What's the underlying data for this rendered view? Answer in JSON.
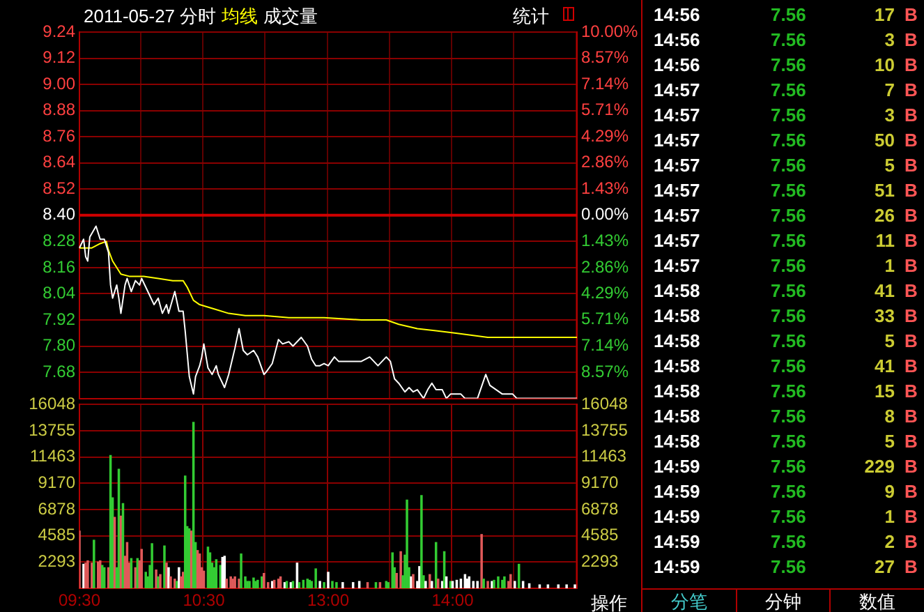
{
  "chart_data": [
    {
      "type": "line",
      "title": "2011-05-27 分时",
      "grid": true,
      "annotations": [
        "统计"
      ],
      "categories": [
        null,
        null,
        null,
        null,
        null,
        null,
        null,
        null,
        null,
        null,
        null,
        null,
        null,
        null,
        null,
        null,
        null,
        null,
        null,
        null,
        null,
        null,
        null,
        null,
        null,
        null,
        null,
        null,
        null,
        null,
        null,
        null,
        null,
        null,
        null,
        null,
        null,
        null,
        null,
        null,
        null,
        null,
        null,
        null,
        null,
        null,
        null,
        null,
        null,
        null,
        null,
        null,
        null,
        null,
        null,
        null,
        null,
        null,
        null,
        null,
        null,
        null,
        null,
        null,
        null,
        null,
        null,
        null,
        null,
        null,
        null,
        null,
        null,
        null,
        null,
        null,
        null,
        null,
        null,
        null,
        null,
        null,
        null,
        null,
        null,
        null,
        null,
        null,
        null,
        null,
        null,
        null,
        null,
        null,
        null,
        null,
        null,
        null,
        null,
        null,
        null,
        null,
        null,
        null,
        null,
        null,
        null,
        null,
        null,
        null,
        null,
        null,
        null,
        null,
        null,
        null,
        null,
        null,
        null,
        null,
        null,
        null,
        null,
        null,
        null,
        null,
        null,
        null,
        null,
        null,
        null,
        null,
        null,
        null,
        null,
        null,
        null,
        null,
        null,
        null,
        null,
        null,
        null,
        null,
        null,
        null,
        null,
        null,
        null,
        null,
        null,
        null,
        null,
        null,
        null,
        null,
        null,
        null,
        null,
        null,
        null,
        null,
        null,
        null,
        null,
        null,
        null,
        null,
        null,
        null,
        null,
        null,
        null,
        null,
        null,
        null,
        null,
        null,
        null,
        null,
        null,
        null,
        null,
        null,
        null,
        null,
        null,
        null,
        null,
        null,
        null,
        null,
        null,
        null,
        null,
        null,
        null,
        null,
        null,
        null,
        null,
        null,
        null,
        null,
        null,
        null,
        null,
        null,
        null,
        null,
        null,
        null,
        null,
        null,
        null,
        null,
        null,
        null,
        null,
        null,
        null,
        null,
        null,
        null,
        null,
        null,
        null,
        null,
        null,
        null,
        null,
        null,
        null,
        null,
        null,
        null,
        null,
        null,
        null,
        null,
        null
      ],
      "series": [
        {
          "color": "#ffffff",
          "values": [
            8.25,
            null,
            8.29,
            8.21,
            8.19,
            8.3,
            null,
            null,
            8.35,
            null,
            8.29,
            null,
            8.29,
            null,
            8.23,
            8.08,
            8.02,
            null,
            8.08,
            8.02,
            7.95,
            null,
            8.08,
            8.11,
            null,
            8.05,
            null,
            8.1,
            null,
            8.08,
            8.11,
            null,
            null,
            8.05,
            null,
            null,
            7.99,
            null,
            8.02,
            null,
            7.95,
            null,
            7.99,
            7.95,
            null,
            null,
            8.05,
            null,
            7.96,
            null,
            7.96,
            7.87,
            null,
            7.66,
            null,
            7.58,
            7.66,
            null,
            7.71,
            7.75,
            7.81,
            null,
            7.7,
            null,
            7.67,
            null,
            7.71,
            7.67,
            null,
            null,
            7.61,
            null,
            7.67,
            null,
            null,
            7.79,
            null,
            7.88,
            null,
            7.78,
            null,
            7.76,
            null,
            null,
            7.78,
            null,
            7.75,
            null,
            null,
            7.67,
            7.68,
            null,
            null,
            7.72,
            null,
            null,
            7.83,
            null,
            7.81,
            null,
            null,
            7.82,
            null,
            7.8,
            null,
            7.82,
            null,
            7.84,
            null,
            null,
            7.8,
            null,
            7.74,
            null,
            7.71,
            null,
            7.71,
            null,
            7.72,
            null,
            7.71,
            null,
            null,
            7.75,
            null,
            7.73,
            null,
            null,
            7.73,
            null,
            null,
            null,
            7.73,
            null,
            null,
            null,
            7.73,
            null,
            null,
            null,
            7.75,
            null,
            7.73,
            null,
            7.71,
            null,
            null,
            null,
            7.75,
            null,
            7.73,
            null,
            7.65,
            null,
            7.63,
            null,
            null,
            7.59,
            null,
            7.61,
            null,
            7.59,
            null,
            7.6,
            null,
            null,
            7.56,
            null,
            7.6,
            null,
            7.63,
            null,
            7.6,
            null,
            null,
            7.6,
            null,
            7.56,
            null,
            7.58,
            null,
            7.58,
            null,
            null,
            7.58,
            null,
            7.56,
            null,
            null,
            null,
            7.56,
            null,
            7.56,
            null,
            null,
            null,
            7.67,
            null,
            7.62,
            null,
            null,
            7.6,
            null,
            null,
            7.58,
            null,
            7.58,
            null,
            null,
            7.58,
            null,
            7.56,
            null,
            null,
            null,
            null,
            null,
            null,
            null,
            null,
            null,
            null,
            null,
            null,
            null,
            null,
            null,
            null,
            null,
            null,
            null,
            null,
            null,
            null,
            null,
            null,
            null,
            null,
            null,
            null,
            7.56
          ]
        },
        {
          "name": "均线",
          "color": "#ffff00",
          "values": [
            8.25,
            null,
            null,
            null,
            null,
            null,
            8.25,
            null,
            null,
            null,
            8.27,
            null,
            null,
            8.28,
            8.24,
            null,
            8.19,
            null,
            null,
            null,
            8.13,
            null,
            null,
            null,
            8.12,
            null,
            null,
            null,
            null,
            null,
            null,
            8.12,
            null,
            null,
            null,
            null,
            null,
            null,
            8.11,
            null,
            null,
            null,
            null,
            null,
            null,
            8.1,
            null,
            null,
            null,
            null,
            8.1,
            null,
            8.07,
            null,
            null,
            8.01,
            null,
            null,
            7.99,
            null,
            null,
            null,
            null,
            null,
            null,
            7.97,
            null,
            null,
            null,
            null,
            null,
            null,
            7.95,
            null,
            null,
            null,
            null,
            null,
            null,
            null,
            7.94,
            null,
            null,
            null,
            null,
            null,
            null,
            null,
            null,
            7.94,
            null,
            null,
            null,
            null,
            null,
            null,
            null,
            null,
            null,
            null,
            null,
            7.93,
            null,
            null,
            null,
            null,
            null,
            null,
            null,
            null,
            null,
            null,
            null,
            null,
            null,
            null,
            null,
            null,
            7.93,
            null,
            null,
            null,
            null,
            null,
            null,
            null,
            null,
            null,
            null,
            null,
            null,
            null,
            null,
            null,
            null,
            null,
            7.92,
            null,
            null,
            null,
            null,
            null,
            null,
            null,
            null,
            null,
            null,
            null,
            7.92,
            null,
            null,
            null,
            null,
            null,
            7.9,
            null,
            null,
            null,
            null,
            null,
            null,
            null,
            null,
            7.88,
            null,
            null,
            null,
            null,
            null,
            null,
            null,
            null,
            7.87,
            null,
            null,
            null,
            null,
            null,
            null,
            null,
            null,
            7.86,
            null,
            null,
            null,
            null,
            null,
            null,
            null,
            null,
            null,
            null,
            null,
            null,
            null,
            null,
            null,
            7.84,
            null,
            null,
            null,
            null,
            null,
            null,
            null,
            null,
            null,
            null,
            null,
            null,
            7.84,
            null,
            null,
            null,
            null,
            null,
            null,
            null,
            null,
            null,
            null,
            null,
            null,
            null,
            null,
            null,
            null,
            null,
            null,
            null,
            null,
            null,
            null,
            null,
            null,
            null,
            null,
            null,
            null,
            null,
            7.84
          ]
        }
      ],
      "ylim": [
        7.56,
        9.24
      ],
      "yticks": [
        {
          "value": 9.24,
          "label": "9.24"
        },
        {
          "value": 9.12,
          "label": "9.12"
        },
        {
          "value": 9.0,
          "label": "9.00"
        },
        {
          "value": 8.88,
          "label": "8.88"
        },
        {
          "value": 8.76,
          "label": "8.76"
        },
        {
          "value": 8.64,
          "label": "8.64"
        },
        {
          "value": 8.52,
          "label": "8.52"
        },
        {
          "value": 8.4,
          "label": "8.40"
        },
        {
          "value": 8.28,
          "label": "8.28"
        },
        {
          "value": 8.16,
          "label": "8.16"
        },
        {
          "value": 8.04,
          "label": "8.04"
        },
        {
          "value": 7.92,
          "label": "7.92"
        },
        {
          "value": 7.8,
          "label": "7.80"
        },
        {
          "value": 7.68,
          "label": "7.68"
        },
        {
          "value": 7.56,
          "label": null
        }
      ],
      "y2lim": [
        -10,
        10
      ],
      "y2ticks": [
        {
          "value": 10,
          "label": "10.00%"
        },
        {
          "value": 8.57,
          "label": "8.57%"
        },
        {
          "value": 7.14,
          "label": "7.14%"
        },
        {
          "value": 5.71,
          "label": "5.71%"
        },
        {
          "value": 4.29,
          "label": "4.29%"
        },
        {
          "value": 2.86,
          "label": "2.86%"
        },
        {
          "value": 1.43,
          "label": "1.43%"
        },
        {
          "value": 0,
          "label": "0.00%"
        },
        {
          "value": -1.43,
          "label": "1.43%"
        },
        {
          "value": -2.86,
          "label": "2.86%"
        },
        {
          "value": -4.29,
          "label": "4.29%"
        },
        {
          "value": -5.71,
          "label": "5.71%"
        },
        {
          "value": -7.14,
          "label": "7.14%"
        },
        {
          "value": -8.57,
          "label": "8.57%"
        },
        {
          "value": -10,
          "label": null
        }
      ],
      "ref_lines": [
        {
          "axis": "y",
          "value": 8.4,
          "color": "#d00000"
        }
      ]
    },
    {
      "type": "bar",
      "title": "成交量",
      "grid": true,
      "annotations": [
        "操作"
      ],
      "categories": [
        "09:30",
        null,
        null,
        null,
        null,
        null,
        null,
        null,
        null,
        null,
        null,
        null,
        null,
        null,
        null,
        null,
        null,
        null,
        null,
        null,
        null,
        null,
        null,
        null,
        null,
        null,
        null,
        null,
        null,
        null,
        null,
        null,
        null,
        null,
        null,
        null,
        null,
        null,
        null,
        null,
        null,
        null,
        null,
        null,
        null,
        null,
        null,
        null,
        null,
        null,
        null,
        null,
        null,
        null,
        null,
        null,
        null,
        null,
        null,
        null,
        "10:30",
        null,
        null,
        null,
        null,
        null,
        null,
        null,
        null,
        null,
        null,
        null,
        null,
        null,
        null,
        null,
        null,
        null,
        null,
        null,
        null,
        null,
        null,
        null,
        null,
        null,
        null,
        null,
        null,
        null,
        null,
        null,
        null,
        null,
        null,
        null,
        null,
        null,
        null,
        null,
        null,
        null,
        null,
        null,
        null,
        null,
        null,
        null,
        null,
        null,
        null,
        null,
        null,
        null,
        null,
        null,
        null,
        null,
        null,
        null,
        "13:00",
        null,
        null,
        null,
        null,
        null,
        null,
        null,
        null,
        null,
        null,
        null,
        null,
        null,
        null,
        null,
        null,
        null,
        null,
        null,
        null,
        null,
        null,
        null,
        null,
        null,
        null,
        null,
        null,
        null,
        null,
        null,
        null,
        null,
        null,
        null,
        null,
        null,
        null,
        null,
        null,
        null,
        null,
        null,
        null,
        null,
        null,
        null,
        null,
        null,
        null,
        null,
        null,
        null,
        null,
        null,
        null,
        null,
        null,
        null,
        "14:00",
        null,
        null,
        null,
        null,
        null,
        null,
        null,
        null,
        null,
        null,
        null,
        null,
        null,
        null,
        null,
        null,
        null,
        null,
        null,
        null,
        null,
        null,
        null,
        null,
        null,
        null,
        null,
        null,
        null,
        null,
        null,
        null,
        null,
        null,
        null,
        null,
        null,
        null,
        null,
        null,
        null,
        null,
        null,
        null,
        null,
        null,
        null,
        null,
        null,
        null,
        null,
        null,
        null,
        null,
        null,
        null,
        null,
        null,
        null,
        null
      ],
      "values": [
        5000,
        null,
        2100,
        2200,
        2400,
        null,
        2200,
        4200,
        null,
        2300,
        2400,
        2000,
        1800,
        null,
        1800,
        11600,
        7900,
        6200,
        1800,
        10400,
        6300,
        7400,
        2800,
        4000,
        2200,
        2600,
        null,
        1800,
        2600,
        2400,
        3400,
        null,
        1400,
        1000,
        2000,
        3900,
        null,
        1600,
        1000,
        1200,
        null,
        3700,
        2200,
        1800,
        1000,
        null,
        800,
        600,
        1800,
        1000,
        1400,
        9800,
        5400,
        5200,
        5000,
        14500,
        4000,
        3300,
        3000,
        1800,
        1500,
        null,
        3600,
        3100,
        2200,
        1800,
        2500,
        null,
        2000,
        2700,
        2800,
        800,
        null,
        1000,
        800,
        1000,
        null,
        800,
        3000,
        null,
        1000,
        600,
        600,
        null,
        900,
        600,
        700,
        null,
        1000,
        1300,
        null,
        500,
        null,
        600,
        700,
        null,
        800,
        1000,
        null,
        500,
        600,
        null,
        500,
        600,
        null,
        2200,
        500,
        null,
        700,
        null,
        800,
        700,
        600,
        null,
        1700,
        null,
        600,
        null,
        500,
        null,
        1400,
        null,
        600,
        null,
        500,
        null,
        null,
        500,
        null,
        null,
        null,
        null,
        500,
        null,
        null,
        600,
        null,
        null,
        null,
        500,
        null,
        null,
        null,
        500,
        null,
        500,
        null,
        null,
        600,
        500,
        null,
        3100,
        1800,
        1300,
        null,
        3200,
        1100,
        2900,
        7700,
        1800,
        1000,
        1200,
        null,
        600,
        1900,
        8100,
        1100,
        600,
        null,
        1200,
        600,
        null,
        4000,
        800,
        null,
        600,
        3200,
        1000,
        null,
        600,
        600,
        null,
        700,
        null,
        800,
        null,
        1200,
        800,
        1000,
        null,
        600,
        null,
        600,
        null,
        4700,
        800,
        null,
        600,
        null,
        600,
        700,
        null,
        1000,
        null,
        700,
        1000,
        null,
        600,
        1200,
        null,
        600,
        null,
        2100,
        null,
        600,
        null,
        null,
        400,
        null,
        null,
        null,
        null,
        300,
        null,
        null,
        null,
        300,
        null,
        null,
        null,
        null,
        300,
        null,
        null,
        null,
        300,
        null,
        null,
        null,
        300,
        null
      ],
      "colors": [
        "#e05a5a",
        null,
        "#ffffff",
        "#e05a5a",
        "#e05a5a",
        null,
        "#e05a5a",
        "#33cc33",
        null,
        "#e05a5a",
        "#e05a5a",
        "#33cc33",
        "#33cc33",
        null,
        "#e05a5a",
        "#33cc33",
        "#33cc33",
        "#e05a5a",
        "#33cc33",
        "#33cc33",
        "#e05a5a",
        "#33cc33",
        "#e05a5a",
        "#e05a5a",
        "#e05a5a",
        "#33cc33",
        null,
        "#e05a5a",
        "#33cc33",
        "#e05a5a",
        "#e05a5a",
        null,
        "#33cc33",
        "#33cc33",
        "#33cc33",
        "#33cc33",
        null,
        "#e05a5a",
        "#33cc33",
        "#e05a5a",
        null,
        "#33cc33",
        "#e05a5a",
        "#ffffff",
        "#e05a5a",
        null,
        "#e05a5a",
        "#33cc33",
        "#ffffff",
        "#e05a5a",
        "#e05a5a",
        "#33cc33",
        "#33cc33",
        "#33cc33",
        "#e05a5a",
        "#33cc33",
        "#33cc33",
        "#e05a5a",
        "#e05a5a",
        "#e05a5a",
        "#e05a5a",
        null,
        "#33cc33",
        "#33cc33",
        "#33cc33",
        "#33cc33",
        "#33cc33",
        null,
        "#33cc33",
        "#ffffff",
        "#ffffff",
        "#e05a5a",
        null,
        "#e05a5a",
        "#e05a5a",
        "#e05a5a",
        null,
        "#e05a5a",
        "#33cc33",
        null,
        "#33cc33",
        "#33cc33",
        "#33cc33",
        null,
        "#33cc33",
        "#33cc33",
        "#33cc33",
        null,
        "#33cc33",
        "#e05a5a",
        null,
        "#e05a5a",
        null,
        "#ffffff",
        "#e05a5a",
        null,
        "#e05a5a",
        "#e05a5a",
        null,
        "#ffffff",
        "#33cc33",
        null,
        "#ffffff",
        "#33cc33",
        null,
        "#ffffff",
        "#33cc33",
        null,
        "#33cc33",
        null,
        "#33cc33",
        "#33cc33",
        "#33cc33",
        null,
        "#33cc33",
        null,
        "#ffffff",
        null,
        "#33cc33",
        null,
        "#ffffff",
        null,
        "#33cc33",
        null,
        "#33cc33",
        null,
        null,
        "#ffffff",
        null,
        null,
        null,
        null,
        "#ffffff",
        null,
        null,
        "#ffffff",
        null,
        null,
        null,
        "#e05a5a",
        null,
        null,
        null,
        "#33cc33",
        null,
        "#e05a5a",
        null,
        null,
        "#33cc33",
        "#33cc33",
        null,
        "#33cc33",
        "#33cc33",
        "#e05a5a",
        null,
        "#e05a5a",
        "#33cc33",
        "#33cc33",
        "#33cc33",
        "#33cc33",
        "#ffffff",
        "#e05a5a",
        null,
        "#ffffff",
        "#ffffff",
        "#33cc33",
        "#33cc33",
        "#ffffff",
        null,
        "#e05a5a",
        "#ffffff",
        null,
        "#33cc33",
        "#e05a5a",
        null,
        "#ffffff",
        "#33cc33",
        "#ffffff",
        null,
        "#33cc33",
        "#ffffff",
        null,
        "#ffffff",
        null,
        "#ffffff",
        null,
        "#ffffff",
        "#ffffff",
        "#ffffff",
        null,
        "#ffffff",
        null,
        "#ffffff",
        null,
        "#e05a5a",
        "#33cc33",
        null,
        "#e05a5a",
        null,
        "#ffffff",
        "#33cc33",
        null,
        "#33cc33",
        null,
        "#33cc33",
        "#33cc33",
        null,
        "#e05a5a",
        "#e05a5a",
        null,
        "#ffffff",
        null,
        "#33cc33",
        null,
        "#ffffff",
        null,
        null,
        "#ffffff",
        null,
        null,
        null,
        null,
        "#ffffff",
        null,
        null,
        null,
        "#ffffff",
        null,
        null,
        null,
        null,
        "#ffffff",
        null,
        null,
        null,
        "#ffffff",
        null,
        null,
        null,
        "#ffffff",
        null
      ],
      "ylim": [
        0,
        16048
      ],
      "yticks": [
        2293,
        4585,
        6878,
        9170,
        11463,
        13755,
        16048
      ],
      "y2lim": [
        0,
        16048
      ],
      "y2ticks": [
        2293,
        4585,
        6878,
        9170,
        11463,
        13755,
        16048
      ]
    },
    {
      "type": "other",
      "annotations": [
        "14:56",
        "7.56",
        "17",
        "B",
        "14:56",
        "7.56",
        "3",
        "B",
        "14:56",
        "7.56",
        "10",
        "B",
        "14:57",
        "7.56",
        "7",
        "B",
        "14:57",
        "7.56",
        "3",
        "B",
        "14:57",
        "7.56",
        "50",
        "B",
        "14:57",
        "7.56",
        "5",
        "B",
        "14:57",
        "7.56",
        "51",
        "B",
        "14:57",
        "7.56",
        "26",
        "B",
        "14:57",
        "7.56",
        "11",
        "B",
        "14:57",
        "7.56",
        "1",
        "B",
        "14:58",
        "7.56",
        "41",
        "B",
        "14:58",
        "7.56",
        "33",
        "B",
        "14:58",
        "7.56",
        "5",
        "B",
        "14:58",
        "7.56",
        "41",
        "B",
        "14:58",
        "7.56",
        "15",
        "B",
        "14:58",
        "7.56",
        "8",
        "B",
        "14:58",
        "7.56",
        "5",
        "B",
        "14:59",
        "7.56",
        "229",
        "B",
        "14:59",
        "7.56",
        "9",
        "B",
        "14:59",
        "7.56",
        "1",
        "B",
        "14:59",
        "7.56",
        "2",
        "B",
        "14:59",
        "7.56",
        "27",
        "B",
        "分笔",
        "分钟",
        "数值"
      ]
    }
  ]
}
